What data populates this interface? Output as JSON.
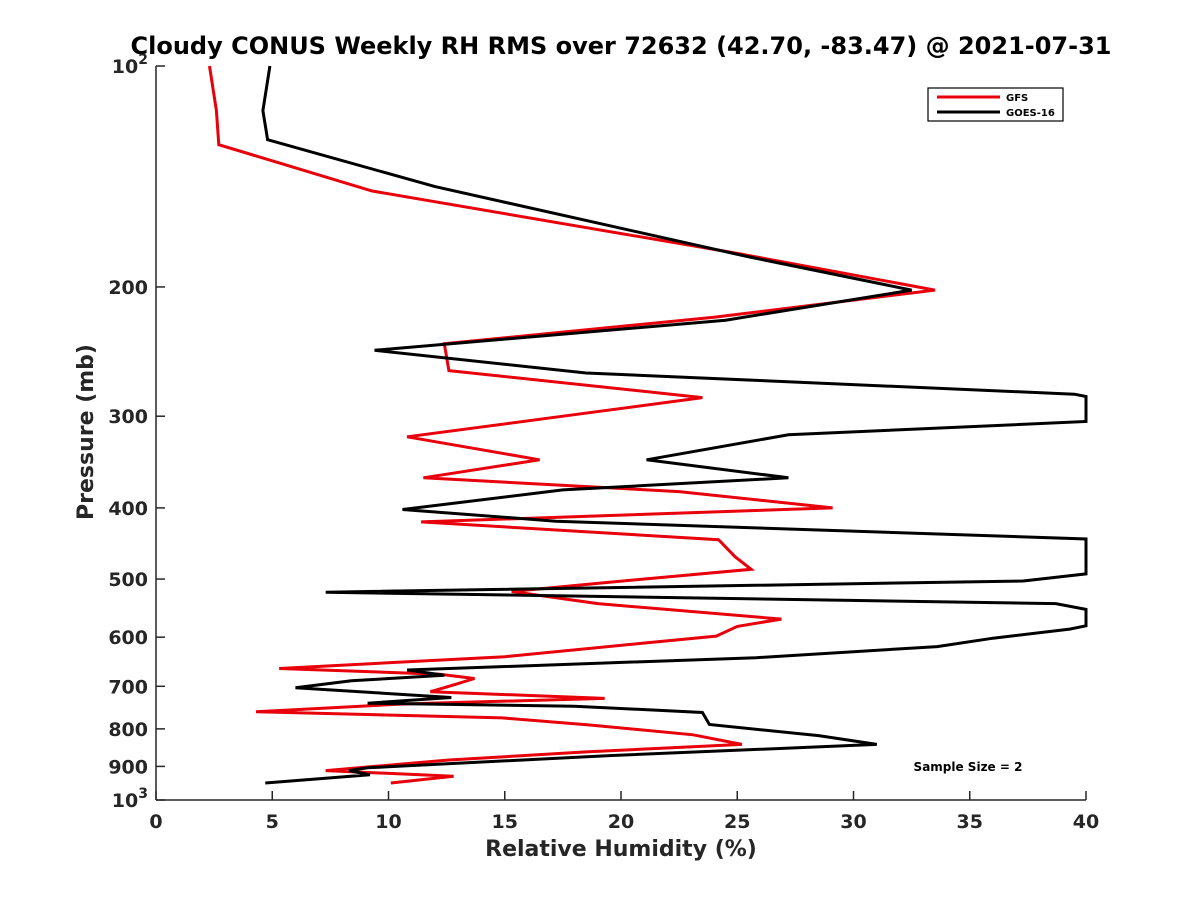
{
  "chart_data": {
    "type": "line",
    "title": "Cloudy CONUS Weekly RH RMS over 72632 (42.70, -83.47) @ 2021-07-31",
    "xlabel": "Relative Humidity (%)",
    "ylabel": "Pressure (mb)",
    "xlim": [
      0,
      40
    ],
    "ylim": [
      100,
      1000
    ],
    "yscale": "log",
    "y_reversed": true,
    "grid": false,
    "legend_position": "top-right",
    "x_ticks": [
      0,
      5,
      10,
      15,
      20,
      25,
      30,
      35,
      40
    ],
    "y_ticks": [
      {
        "value": 100,
        "base": "10",
        "exp": "2"
      },
      {
        "value": 200,
        "label": "200"
      },
      {
        "value": 300,
        "label": "300"
      },
      {
        "value": 400,
        "label": "400"
      },
      {
        "value": 500,
        "label": "500"
      },
      {
        "value": 600,
        "label": "600"
      },
      {
        "value": 700,
        "label": "700"
      },
      {
        "value": 800,
        "label": "800"
      },
      {
        "value": 900,
        "label": "900"
      },
      {
        "value": 1000,
        "base": "10",
        "exp": "3"
      }
    ],
    "annotation": "Sample Size = 2",
    "series": [
      {
        "name": "GFS",
        "color": "#e8000b",
        "points": [
          [
            2.3,
            100
          ],
          [
            2.6,
            115
          ],
          [
            2.7,
            128
          ],
          [
            9.3,
            148
          ],
          [
            25,
            180
          ],
          [
            33.5,
            202
          ],
          [
            24,
            220
          ],
          [
            12.4,
            239
          ],
          [
            12.6,
            260
          ],
          [
            23.5,
            283
          ],
          [
            17.5,
            300
          ],
          [
            10.8,
            320
          ],
          [
            16.5,
            344
          ],
          [
            11.5,
            364
          ],
          [
            22.5,
            380
          ],
          [
            29.1,
            400
          ],
          [
            11.4,
            418
          ],
          [
            24.2,
            442
          ],
          [
            24.9,
            466
          ],
          [
            25.6,
            485
          ],
          [
            19.5,
            505
          ],
          [
            15.3,
            520
          ],
          [
            19,
            540
          ],
          [
            26.9,
            567
          ],
          [
            25,
            580
          ],
          [
            24.1,
            598
          ],
          [
            20.8,
            612
          ],
          [
            15,
            638
          ],
          [
            5.3,
            662
          ],
          [
            12.2,
            674
          ],
          [
            13.7,
            683
          ],
          [
            12.8,
            697
          ],
          [
            11.8,
            712
          ],
          [
            19.3,
            727
          ],
          [
            10.6,
            740
          ],
          [
            4.3,
            758
          ],
          [
            14.9,
            773
          ],
          [
            18.6,
            790
          ],
          [
            23.1,
            815
          ],
          [
            25.2,
            840
          ],
          [
            18.5,
            860
          ],
          [
            12.6,
            882
          ],
          [
            9.4,
            900
          ],
          [
            7.3,
            912
          ],
          [
            12.8,
            928
          ],
          [
            10.1,
            948
          ]
        ]
      },
      {
        "name": "GOES-16",
        "color": "#000000",
        "points": [
          [
            4.9,
            100
          ],
          [
            4.6,
            115
          ],
          [
            4.8,
            126
          ],
          [
            12,
            146
          ],
          [
            25.5,
            182
          ],
          [
            32.5,
            202
          ],
          [
            24.5,
            222
          ],
          [
            9.4,
            244
          ],
          [
            18.5,
            262
          ],
          [
            39.5,
            280
          ],
          [
            40,
            282
          ],
          [
            40,
            305
          ],
          [
            27.2,
            318
          ],
          [
            21.1,
            344
          ],
          [
            27.2,
            364
          ],
          [
            17.5,
            378
          ],
          [
            10.6,
            402
          ],
          [
            17.2,
            417
          ],
          [
            40,
            441
          ],
          [
            40,
            492
          ],
          [
            37.3,
            503
          ],
          [
            7.3,
            521
          ],
          [
            38.7,
            540
          ],
          [
            40,
            550
          ],
          [
            40,
            579
          ],
          [
            39.3,
            585
          ],
          [
            36,
            602
          ],
          [
            33.6,
            618
          ],
          [
            25.8,
            640
          ],
          [
            10.8,
            665
          ],
          [
            12.4,
            676
          ],
          [
            8.4,
            688
          ],
          [
            6,
            703
          ],
          [
            12.7,
            725
          ],
          [
            9.1,
            738
          ],
          [
            18,
            745
          ],
          [
            23.5,
            760
          ],
          [
            23.8,
            789
          ],
          [
            28.5,
            817
          ],
          [
            31,
            840
          ],
          [
            19.5,
            870
          ],
          [
            9.1,
            904
          ],
          [
            8.3,
            912
          ],
          [
            9.2,
            924
          ],
          [
            4.7,
            948
          ]
        ]
      }
    ]
  }
}
